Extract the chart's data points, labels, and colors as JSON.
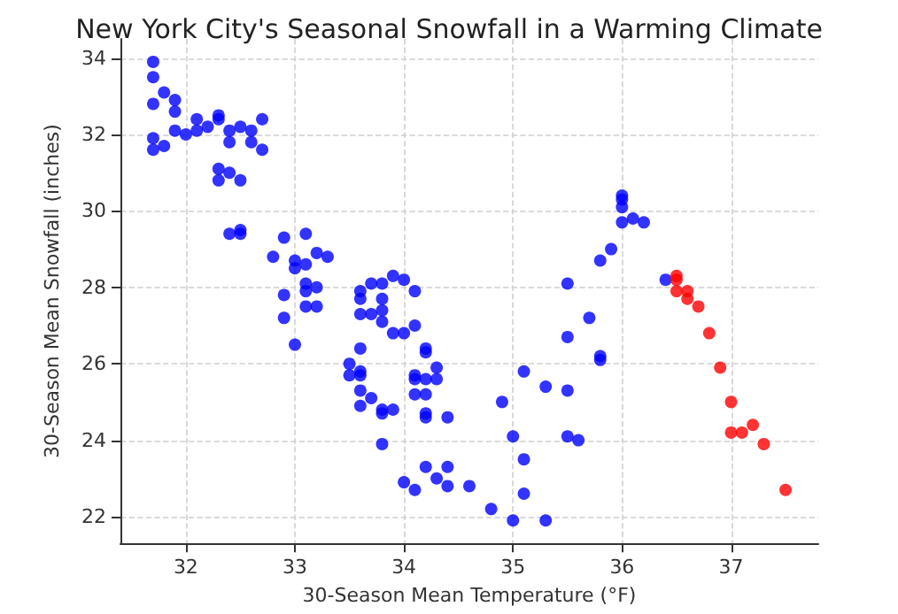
{
  "chart_data": {
    "type": "scatter",
    "title": "New York City's Seasonal Snowfall in a Warming Climate",
    "xlabel": "30-Season Mean Temperature (°F)",
    "ylabel": "30-Season Mean Snowfall (inches)",
    "xlim": [
      31.4,
      37.8
    ],
    "xticks": [
      32,
      33,
      34,
      35,
      36,
      37
    ],
    "ylim": [
      21.3,
      34.5
    ],
    "yticks": [
      22,
      24,
      26,
      28,
      30,
      32,
      34
    ],
    "grid": true,
    "marker": "circle",
    "series": [
      {
        "color": "#0000ff",
        "x": [
          31.7,
          31.7,
          31.8,
          31.9,
          31.9,
          31.7,
          31.7,
          31.7,
          31.8,
          31.9,
          32.0,
          32.1,
          32.1,
          32.2,
          32.3,
          32.3,
          32.4,
          32.4,
          32.5,
          32.6,
          32.6,
          32.7,
          32.7,
          32.3,
          32.3,
          32.4,
          32.5,
          32.4,
          32.5,
          32.5,
          32.8,
          32.9,
          33.1,
          33.0,
          33.0,
          33.1,
          33.2,
          33.3,
          32.9,
          32.9,
          33.0,
          33.1,
          33.1,
          33.2,
          33.1,
          33.2,
          33.5,
          33.5,
          33.6,
          33.6,
          33.6,
          33.6,
          33.6,
          33.7,
          33.6,
          33.6,
          33.6,
          33.7,
          33.7,
          33.8,
          33.8,
          33.8,
          33.8,
          33.9,
          34.0,
          34.1,
          33.9,
          34.0,
          34.1,
          33.8,
          33.8,
          33.9,
          33.8,
          34.0,
          34.1,
          34.2,
          34.2,
          34.3,
          34.1,
          34.1,
          34.2,
          34.3,
          34.1,
          34.2,
          34.2,
          34.2,
          34.4,
          34.2,
          34.4,
          34.3,
          34.4,
          34.6,
          34.8,
          35.0,
          35.3,
          35.1,
          35.1,
          35.0,
          34.9,
          35.1,
          35.3,
          35.5,
          35.5,
          35.6,
          35.5,
          35.7,
          35.8,
          35.8,
          35.5,
          36.0,
          36.0,
          36.0,
          36.0,
          36.1,
          36.2,
          35.9,
          35.8,
          36.4
        ],
        "values": [
          33.9,
          33.5,
          33.1,
          32.9,
          32.6,
          32.8,
          31.9,
          31.6,
          31.7,
          32.1,
          32.0,
          32.4,
          32.1,
          32.2,
          32.5,
          32.4,
          32.1,
          31.8,
          32.2,
          32.1,
          31.8,
          32.4,
          31.6,
          31.1,
          30.8,
          31.0,
          30.8,
          29.4,
          29.5,
          29.4,
          28.8,
          29.3,
          29.4,
          28.7,
          28.5,
          28.6,
          28.9,
          28.8,
          27.8,
          27.2,
          26.5,
          28.1,
          27.9,
          28.0,
          27.5,
          27.5,
          26.0,
          25.7,
          26.4,
          25.8,
          25.7,
          25.3,
          24.9,
          25.1,
          27.9,
          27.7,
          27.3,
          28.1,
          27.3,
          28.1,
          27.7,
          27.4,
          27.1,
          28.3,
          28.2,
          27.9,
          26.8,
          26.8,
          27.0,
          24.8,
          24.7,
          24.8,
          23.9,
          22.9,
          22.7,
          26.4,
          26.3,
          25.9,
          25.7,
          25.6,
          25.6,
          25.6,
          25.2,
          25.2,
          24.7,
          24.6,
          24.6,
          23.3,
          23.3,
          23.0,
          22.8,
          22.8,
          22.2,
          21.9,
          21.9,
          22.6,
          23.5,
          24.1,
          25.0,
          25.8,
          25.4,
          25.3,
          24.1,
          24.0,
          26.7,
          27.2,
          26.2,
          26.1,
          28.1,
          30.4,
          30.3,
          30.1,
          29.7,
          29.8,
          29.7,
          29.0,
          28.7,
          28.2
        ]
      },
      {
        "color": "#ff0000",
        "x": [
          36.5,
          36.5,
          36.5,
          36.6,
          36.6,
          36.7,
          36.8,
          36.9,
          37.0,
          37.0,
          37.1,
          37.2,
          37.3,
          37.5
        ],
        "values": [
          28.3,
          28.2,
          27.9,
          27.9,
          27.7,
          27.5,
          26.8,
          25.9,
          25.0,
          24.2,
          24.2,
          24.4,
          23.9,
          22.7
        ]
      }
    ]
  }
}
